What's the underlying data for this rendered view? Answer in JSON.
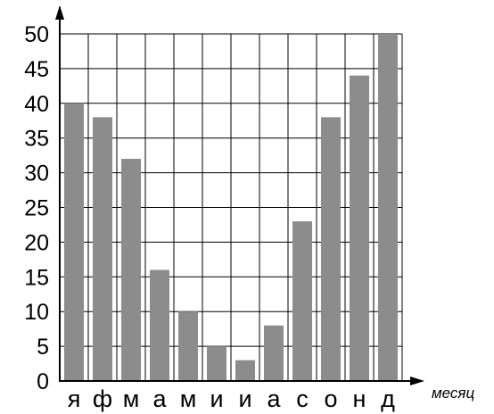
{
  "chart_data": {
    "type": "bar",
    "categories": [
      "я",
      "ф",
      "м",
      "а",
      "м",
      "и",
      "и",
      "а",
      "с",
      "о",
      "н",
      "д"
    ],
    "values": [
      40,
      38,
      32,
      16,
      10,
      5,
      3,
      8,
      23,
      38,
      44,
      50
    ],
    "yticks": [
      "0",
      "5",
      "10",
      "15",
      "20",
      "25",
      "30",
      "35",
      "40",
      "45",
      "50"
    ],
    "xlabel": "месяц",
    "ylabel": "",
    "title": "",
    "ylim": [
      0,
      50
    ],
    "grid": true,
    "bar_color": "#8c8c8c",
    "grid_color": "#000000"
  }
}
